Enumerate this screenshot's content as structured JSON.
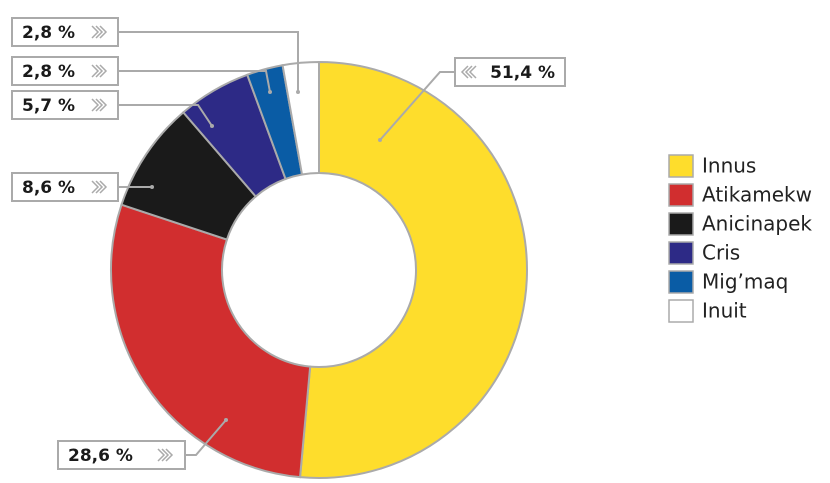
{
  "chart_data": {
    "type": "donut",
    "categories": [
      "Innus",
      "Atikamekw",
      "Anicinapek",
      "Cris",
      "Mig’maq",
      "Inuit"
    ],
    "values": [
      51.4,
      28.6,
      8.6,
      5.7,
      2.8,
      2.8
    ],
    "value_labels": [
      "51,4 %",
      "28,6 %",
      "8,6 %",
      "5,7 %",
      "2,8 %",
      "2,8 %"
    ],
    "colors": [
      "#fedd2c",
      "#d12e2f",
      "#1a1a1a",
      "#2d2a86",
      "#0a5ca5",
      "#ffffff"
    ]
  }
}
